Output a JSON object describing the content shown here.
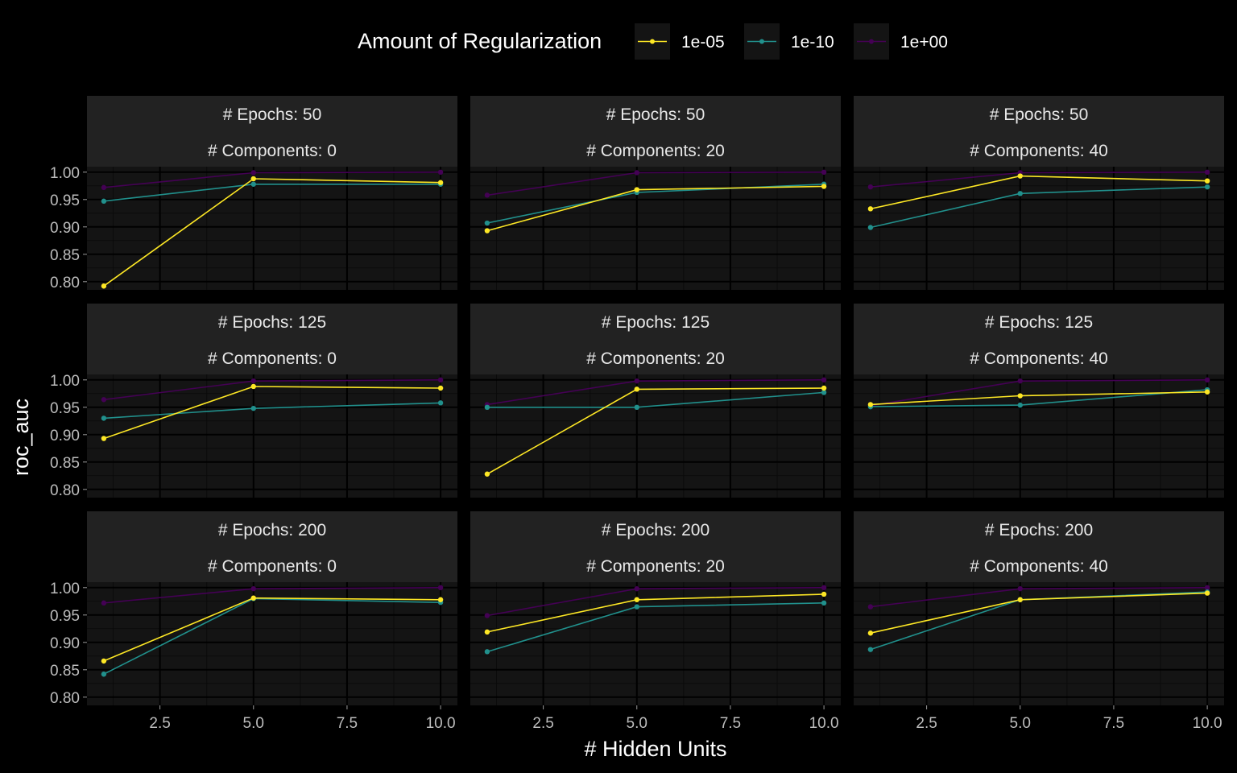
{
  "colors": {
    "background": "#000000",
    "panel": "#141414",
    "strip": "#222222",
    "grid_major": "#000000",
    "grid_minor": "#0b0b0b",
    "text": "#ffffff",
    "tick_text": "#bdbdbd"
  },
  "chart_data": {
    "type": "line",
    "xlabel": "# Hidden Units",
    "ylabel": "roc_auc",
    "legend": {
      "title": "Amount of Regularization",
      "position": "top",
      "entries": [
        {
          "label": "1e-05",
          "color": "#FDE725"
        },
        {
          "label": "1e-10",
          "color": "#21908C"
        },
        {
          "label": "1e+00",
          "color": "#440154"
        }
      ]
    },
    "x_ticks": [
      "2.5",
      "5.0",
      "7.5",
      "10.0"
    ],
    "y_ticks": [
      "0.80",
      "0.85",
      "0.90",
      "0.95",
      "1.00"
    ],
    "xlim": [
      0.55,
      10.45
    ],
    "ylim": [
      0.785,
      1.01
    ],
    "grid": true,
    "x": [
      1,
      5,
      10
    ],
    "facets": [
      {
        "epochs_label": "# Epochs: 50",
        "components_label": "# Components: 0",
        "series": [
          {
            "name": "1e-05",
            "values": [
              0.792,
              0.988,
              0.981
            ]
          },
          {
            "name": "1e-10",
            "values": [
              0.947,
              0.978,
              0.978
            ]
          },
          {
            "name": "1e+00",
            "values": [
              0.972,
              0.999,
              1.0
            ]
          }
        ]
      },
      {
        "epochs_label": "# Epochs: 50",
        "components_label": "# Components: 20",
        "series": [
          {
            "name": "1e-05",
            "values": [
              0.893,
              0.968,
              0.974
            ]
          },
          {
            "name": "1e-10",
            "values": [
              0.907,
              0.963,
              0.978
            ]
          },
          {
            "name": "1e+00",
            "values": [
              0.958,
              0.999,
              1.0
            ]
          }
        ]
      },
      {
        "epochs_label": "# Epochs: 50",
        "components_label": "# Components: 40",
        "series": [
          {
            "name": "1e-05",
            "values": [
              0.933,
              0.993,
              0.984
            ]
          },
          {
            "name": "1e-10",
            "values": [
              0.899,
              0.961,
              0.973
            ]
          },
          {
            "name": "1e+00",
            "values": [
              0.973,
              0.999,
              1.0
            ]
          }
        ]
      },
      {
        "epochs_label": "# Epochs: 125",
        "components_label": "# Components: 0",
        "series": [
          {
            "name": "1e-05",
            "values": [
              0.893,
              0.988,
              0.985
            ]
          },
          {
            "name": "1e-10",
            "values": [
              0.93,
              0.948,
              0.958
            ]
          },
          {
            "name": "1e+00",
            "values": [
              0.964,
              0.998,
              1.0
            ]
          }
        ]
      },
      {
        "epochs_label": "# Epochs: 125",
        "components_label": "# Components: 20",
        "series": [
          {
            "name": "1e-05",
            "values": [
              0.828,
              0.983,
              0.985
            ]
          },
          {
            "name": "1e-10",
            "values": [
              0.95,
              0.95,
              0.977
            ]
          },
          {
            "name": "1e+00",
            "values": [
              0.955,
              0.998,
              1.0
            ]
          }
        ]
      },
      {
        "epochs_label": "# Epochs: 125",
        "components_label": "# Components: 40",
        "series": [
          {
            "name": "1e-05",
            "values": [
              0.955,
              0.971,
              0.978
            ]
          },
          {
            "name": "1e-10",
            "values": [
              0.951,
              0.954,
              0.982
            ]
          },
          {
            "name": "1e+00",
            "values": [
              0.953,
              0.998,
              1.0
            ]
          }
        ]
      },
      {
        "epochs_label": "# Epochs: 200",
        "components_label": "# Components: 0",
        "series": [
          {
            "name": "1e-05",
            "values": [
              0.866,
              0.981,
              0.978
            ]
          },
          {
            "name": "1e-10",
            "values": [
              0.842,
              0.98,
              0.973
            ]
          },
          {
            "name": "1e+00",
            "values": [
              0.972,
              0.998,
              1.0
            ]
          }
        ]
      },
      {
        "epochs_label": "# Epochs: 200",
        "components_label": "# Components: 20",
        "series": [
          {
            "name": "1e-05",
            "values": [
              0.919,
              0.978,
              0.988
            ]
          },
          {
            "name": "1e-10",
            "values": [
              0.883,
              0.965,
              0.972
            ]
          },
          {
            "name": "1e+00",
            "values": [
              0.949,
              0.998,
              1.0
            ]
          }
        ]
      },
      {
        "epochs_label": "# Epochs: 200",
        "components_label": "# Components: 40",
        "series": [
          {
            "name": "1e-05",
            "values": [
              0.917,
              0.978,
              0.99
            ]
          },
          {
            "name": "1e-10",
            "values": [
              0.887,
              0.978,
              0.992
            ]
          },
          {
            "name": "1e+00",
            "values": [
              0.965,
              0.998,
              1.0
            ]
          }
        ]
      }
    ]
  }
}
